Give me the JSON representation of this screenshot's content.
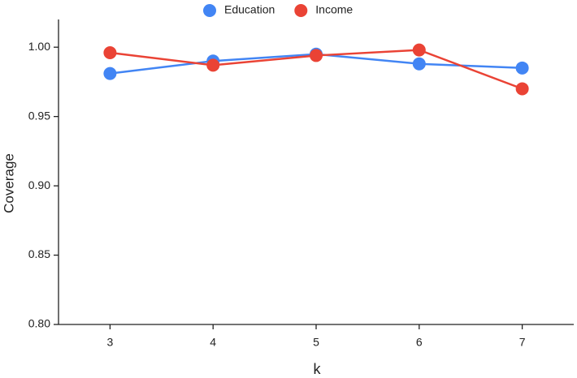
{
  "chart_data": {
    "type": "line",
    "x": [
      3,
      4,
      5,
      6,
      7
    ],
    "xlim": [
      2.5,
      7.5
    ],
    "xticks": [
      3,
      4,
      5,
      6,
      7
    ],
    "ylim": [
      0.8,
      1.02
    ],
    "yticks": [
      {
        "value": 0.8,
        "label": "0.80"
      },
      0.85,
      {
        "value": 0.9,
        "label": "0.90"
      },
      0.95,
      {
        "value": 1.0,
        "label": "1.00"
      }
    ],
    "x_label": "k",
    "y_label": "Coverage",
    "grid": false,
    "legend": "top",
    "series": [
      {
        "name": "Education",
        "color": "#4285f4",
        "values": [
          0.981,
          0.99,
          0.995,
          0.988,
          0.985
        ]
      },
      {
        "name": "Income",
        "color": "#ea4335",
        "values": [
          0.996,
          0.987,
          0.994,
          0.998,
          0.97
        ]
      }
    ]
  }
}
